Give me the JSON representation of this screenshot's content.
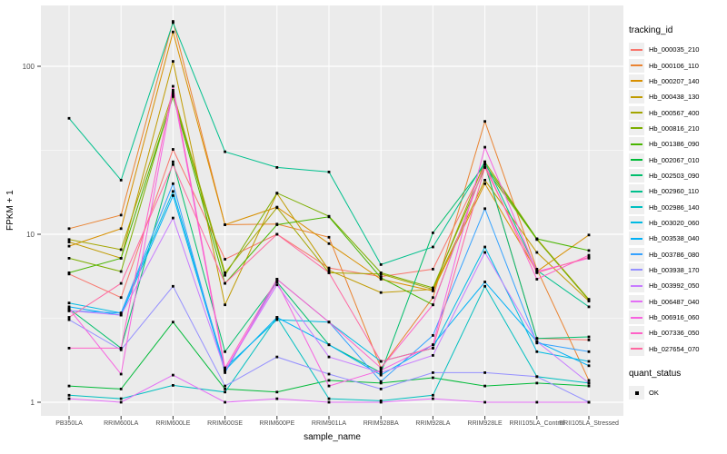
{
  "chart_data": {
    "type": "line",
    "title": "",
    "xlabel": "sample_name",
    "ylabel": "FPKM + 1",
    "y_scale": "log10",
    "ylim": [
      1,
      230
    ],
    "y_ticks": [
      1,
      10,
      100
    ],
    "y_minor": [
      3.162,
      31.62
    ],
    "grid": true,
    "panel_bg": "#EBEBEB",
    "grid_color": "#FFFFFF",
    "tick_color": "#333333",
    "tick_label_color": "#4D4D4D",
    "point_color": "#000000",
    "point_shape": "square",
    "categories": [
      "PB350LA",
      "RRIM600LA",
      "RRIM600LE",
      "RRIM600SE",
      "RRIM600PE",
      "RRIM901LA",
      "RRIM928BA",
      "RRIM928LA",
      "RRIM928LE",
      "RRII105LA_Control",
      "RRII105LA_Stressed"
    ],
    "legend": {
      "title": "tracking_id",
      "position": "right"
    },
    "quant_legend": {
      "title": "quant_status",
      "items": [
        {
          "label": "OK",
          "marker": "black-square"
        }
      ]
    },
    "series": [
      {
        "name": "Hb_000035_210",
        "color": "#F8766D",
        "values": [
          5.8,
          4.2,
          32,
          7.1,
          10.0,
          6.3,
          5.6,
          6.2,
          26,
          2.4,
          2.35
        ]
      },
      {
        "name": "Hb_000106_110",
        "color": "#EA8331",
        "values": [
          10.8,
          13.0,
          185,
          11.4,
          11.5,
          9.6,
          1.6,
          4.2,
          47,
          6.2,
          1.35
        ]
      },
      {
        "name": "Hb_000207_140",
        "color": "#D89000",
        "values": [
          8.5,
          10.8,
          160,
          11.4,
          14.5,
          8.8,
          5.4,
          4.6,
          20,
          6.0,
          9.9
        ]
      },
      {
        "name": "Hb_000438_130",
        "color": "#C09B00",
        "values": [
          9.0,
          7.2,
          107,
          3.8,
          17.5,
          6.1,
          4.5,
          4.7,
          21,
          7.8,
          4.0
        ]
      },
      {
        "name": "Hb_000567_400",
        "color": "#A3A500",
        "values": [
          9.3,
          8.1,
          70,
          5.9,
          14.4,
          5.9,
          5.8,
          4.7,
          27,
          9.4,
          4.1
        ]
      },
      {
        "name": "Hb_000816_210",
        "color": "#7CAE00",
        "values": [
          7.2,
          6.0,
          68,
          5.7,
          17.6,
          12.8,
          5.9,
          4.8,
          25,
          9.3,
          4.05
        ]
      },
      {
        "name": "Hb_001386_090",
        "color": "#49B500",
        "values": [
          5.9,
          7.2,
          66,
          5.1,
          11.4,
          12.7,
          5.5,
          3.8,
          26,
          9.4,
          8.0
        ]
      },
      {
        "name": "Hb_002067_010",
        "color": "#00BA38",
        "values": [
          1.25,
          1.2,
          3.0,
          1.2,
          1.15,
          1.35,
          1.3,
          1.4,
          1.25,
          1.3,
          1.25
        ]
      },
      {
        "name": "Hb_002503_090",
        "color": "#00BE6C",
        "values": [
          3.6,
          2.1,
          27,
          2.0,
          5.2,
          2.2,
          1.5,
          10.2,
          26,
          2.4,
          2.45
        ]
      },
      {
        "name": "Hb_002960_110",
        "color": "#00C08D",
        "values": [
          49,
          21,
          182,
          31,
          25,
          23.5,
          6.6,
          8.4,
          27,
          6.1,
          3.7
        ]
      },
      {
        "name": "Hb_002986_140",
        "color": "#00BFC0",
        "values": [
          1.1,
          1.05,
          1.26,
          1.15,
          3.2,
          1.05,
          1.02,
          1.1,
          4.9,
          1.42,
          1.3
        ]
      },
      {
        "name": "Hb_003020_060",
        "color": "#00BAE3",
        "values": [
          3.9,
          3.4,
          18,
          1.6,
          3.1,
          3.0,
          1.75,
          2.1,
          8.4,
          2.0,
          1.75
        ]
      },
      {
        "name": "Hb_003538_040",
        "color": "#00B0F6",
        "values": [
          3.7,
          3.3,
          17,
          1.55,
          3.2,
          2.2,
          1.45,
          2.2,
          5.2,
          2.3,
          1.65
        ]
      },
      {
        "name": "Hb_003786_080",
        "color": "#35A2FF",
        "values": [
          3.5,
          3.4,
          20,
          1.5,
          5.4,
          3.0,
          1.33,
          2.5,
          14.2,
          2.25,
          2.0
        ]
      },
      {
        "name": "Hb_003938_170",
        "color": "#9590FF",
        "values": [
          3.1,
          2.05,
          4.9,
          1.25,
          1.86,
          1.47,
          1.2,
          1.5,
          1.5,
          1.42,
          1.0
        ]
      },
      {
        "name": "Hb_003992_050",
        "color": "#C77CFF",
        "values": [
          3.5,
          3.3,
          12.5,
          1.55,
          5.0,
          1.86,
          1.5,
          1.9,
          7.8,
          2.3,
          1.3
        ]
      },
      {
        "name": "Hb_006487_040",
        "color": "#E36EF6",
        "values": [
          1.05,
          1.0,
          1.45,
          1.0,
          1.05,
          1.0,
          1.0,
          1.05,
          1.0,
          1.0,
          1.0
        ]
      },
      {
        "name": "Hb_006916_060",
        "color": "#F763E0",
        "values": [
          3.6,
          1.47,
          72,
          1.55,
          5.2,
          1.25,
          1.55,
          2.2,
          33,
          6.0,
          7.2
        ]
      },
      {
        "name": "Hb_007336_050",
        "color": "#FF61C7",
        "values": [
          2.1,
          2.1,
          76,
          1.6,
          5.4,
          3.0,
          1.6,
          3.8,
          26,
          5.4,
          7.5
        ]
      },
      {
        "name": "Hb_027654_070",
        "color": "#FF68A1",
        "values": [
          3.2,
          5.1,
          26,
          5.1,
          10.0,
          5.9,
          1.75,
          2.1,
          25,
          5.9,
          7.3
        ]
      }
    ]
  }
}
